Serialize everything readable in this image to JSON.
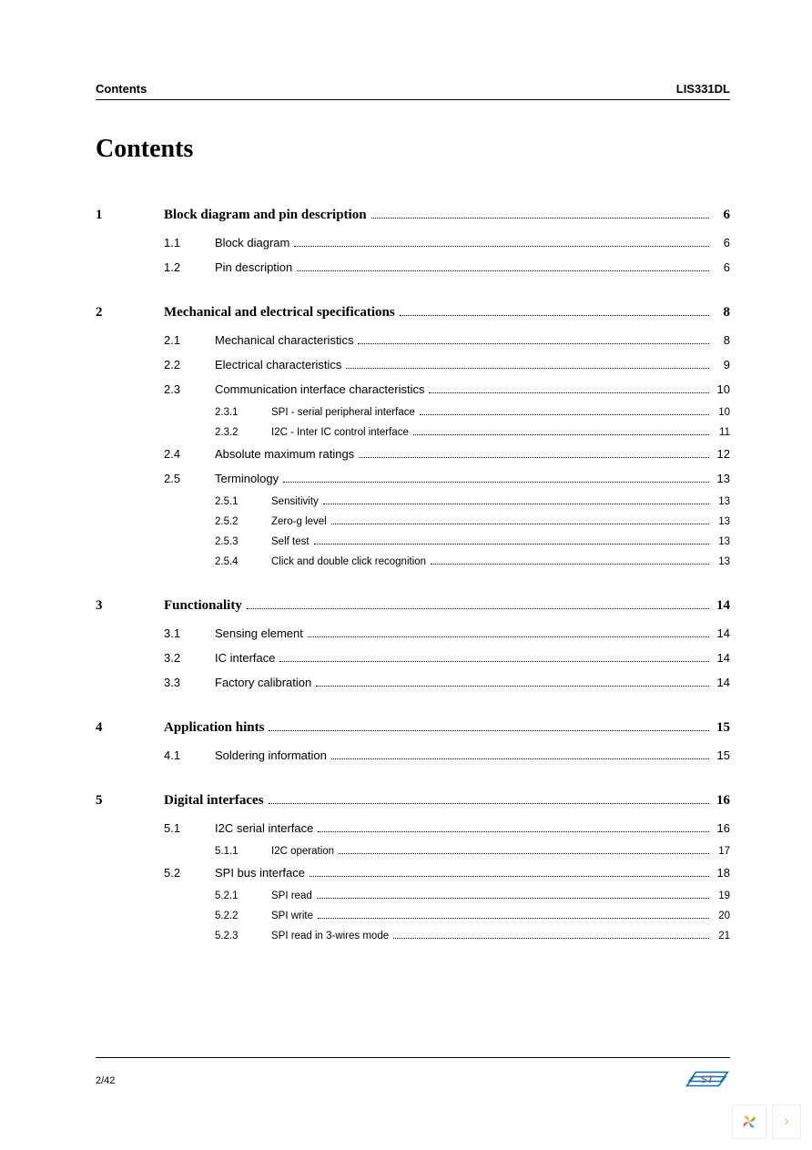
{
  "header": {
    "left": "Contents",
    "right": "LIS331DL"
  },
  "title": "Contents",
  "footer": {
    "page": "2/42"
  },
  "toc": [
    {
      "num": "1",
      "title": "Block diagram and pin description",
      "page": "6",
      "subs": [
        {
          "num": "1.1",
          "title": "Block diagram",
          "page": "6"
        },
        {
          "num": "1.2",
          "title": "Pin description",
          "page": "6"
        }
      ]
    },
    {
      "num": "2",
      "title": "Mechanical and electrical specifications",
      "page": "8",
      "subs": [
        {
          "num": "2.1",
          "title": "Mechanical characteristics",
          "page": "8"
        },
        {
          "num": "2.2",
          "title": "Electrical characteristics",
          "page": "9"
        },
        {
          "num": "2.3",
          "title": "Communication interface characteristics",
          "page": "10",
          "subs": [
            {
              "num": "2.3.1",
              "title": "SPI - serial peripheral interface",
              "page": "10"
            },
            {
              "num": "2.3.2",
              "title": "I2C - Inter IC control interface",
              "page": "11"
            }
          ]
        },
        {
          "num": "2.4",
          "title": "Absolute maximum ratings",
          "page": "12"
        },
        {
          "num": "2.5",
          "title": "Terminology",
          "page": "13",
          "subs": [
            {
              "num": "2.5.1",
              "title": "Sensitivity",
              "page": "13"
            },
            {
              "num": "2.5.2",
              "title": "Zero-g level",
              "page": "13"
            },
            {
              "num": "2.5.3",
              "title": "Self test",
              "page": "13"
            },
            {
              "num": "2.5.4",
              "title": "Click and double click recognition",
              "page": "13"
            }
          ]
        }
      ]
    },
    {
      "num": "3",
      "title": "Functionality",
      "page": "14",
      "subs": [
        {
          "num": "3.1",
          "title": "Sensing element",
          "page": "14"
        },
        {
          "num": "3.2",
          "title": "IC interface",
          "page": "14"
        },
        {
          "num": "3.3",
          "title": "Factory calibration",
          "page": "14"
        }
      ]
    },
    {
      "num": "4",
      "title": "Application hints",
      "page": "15",
      "subs": [
        {
          "num": "4.1",
          "title": "Soldering information",
          "page": "15"
        }
      ]
    },
    {
      "num": "5",
      "title": "Digital interfaces",
      "page": "16",
      "subs": [
        {
          "num": "5.1",
          "title": "I2C serial interface",
          "page": "16",
          "subs": [
            {
              "num": "5.1.1",
              "title": "I2C operation",
              "page": "17"
            }
          ]
        },
        {
          "num": "5.2",
          "title": "SPI bus interface",
          "page": "18",
          "subs": [
            {
              "num": "5.2.1",
              "title": "SPI read",
              "page": "19"
            },
            {
              "num": "5.2.2",
              "title": "SPI write",
              "page": "20"
            },
            {
              "num": "5.2.3",
              "title": "SPI read in 3-wires mode",
              "page": "21"
            }
          ]
        }
      ]
    }
  ],
  "colors": {
    "st_blue": "#0f6db6",
    "st_text": "#5b6c7d",
    "pinwheel": [
      "#f2b233",
      "#7cb342",
      "#4ea3d9",
      "#ef6c57"
    ]
  }
}
